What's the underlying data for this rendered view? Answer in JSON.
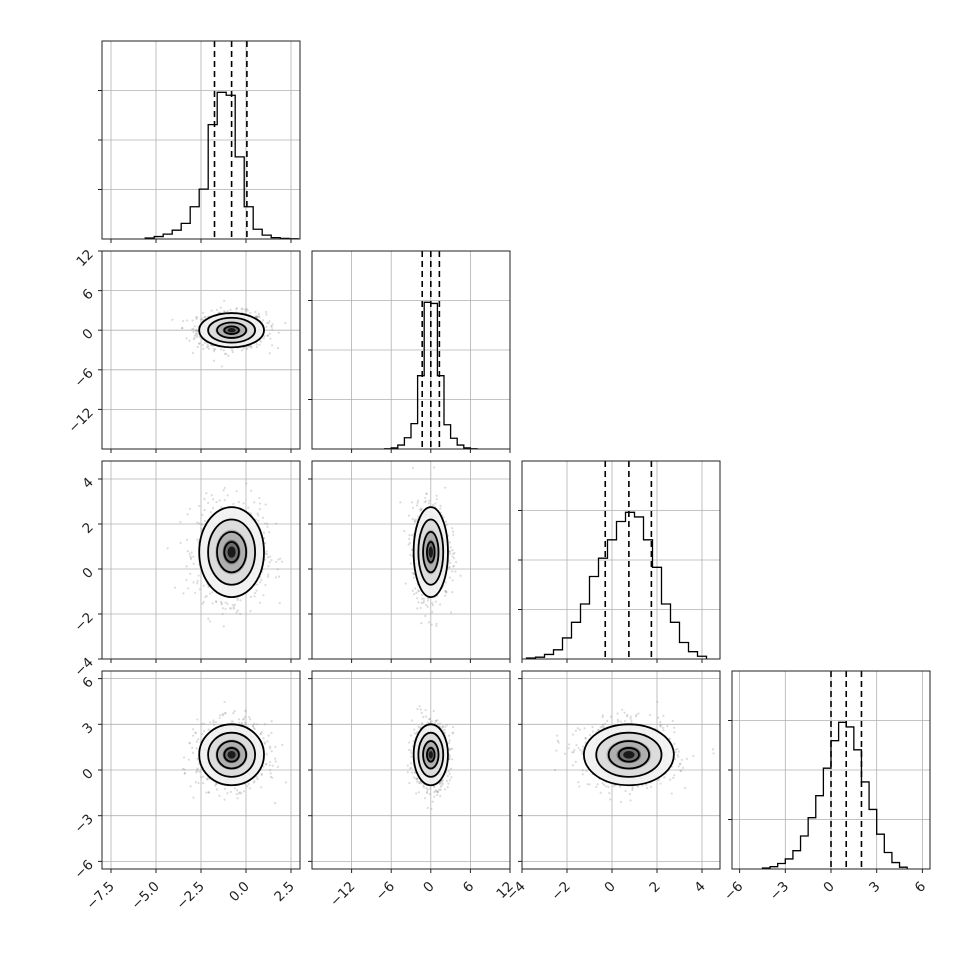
{
  "chart_data": {
    "type": "corner",
    "n_params": 4,
    "parameters": [
      {
        "ticks": [
          -7.5,
          -5.0,
          -2.5,
          0.0,
          2.5
        ],
        "tick_labels": [
          "−7.5",
          "−5.0",
          "−2.5",
          "0.0",
          "2.5"
        ],
        "range": [
          -8.0,
          3.0
        ],
        "mean": -0.8,
        "std": 0.9,
        "quantiles": [
          -1.75,
          -0.8,
          0.05
        ]
      },
      {
        "ticks": [
          -12,
          -6,
          0,
          6,
          12
        ],
        "tick_labels": [
          "−12",
          "−6",
          "0",
          "6",
          "12"
        ],
        "range": [
          -18.0,
          12.0
        ],
        "mean": 0.0,
        "std": 1.3,
        "quantiles": [
          -1.3,
          0.0,
          1.3
        ]
      },
      {
        "ticks": [
          -4,
          -2,
          0,
          2,
          4
        ],
        "tick_labels": [
          "−4",
          "−2",
          "0",
          "2",
          "4"
        ],
        "range": [
          -4.0,
          4.8
        ],
        "mean": 0.75,
        "std": 1.0,
        "quantiles": [
          -0.3,
          0.75,
          1.75
        ]
      },
      {
        "ticks": [
          -6,
          -3,
          0,
          3,
          6
        ],
        "tick_labels": [
          "−6",
          "−3",
          "0",
          "3",
          "6"
        ],
        "range": [
          -6.5,
          6.5
        ],
        "mean": 1.0,
        "std": 1.0,
        "quantiles": [
          0.0,
          1.0,
          2.0
        ]
      }
    ],
    "histograms": [
      {
        "param": 0,
        "edges": [
          -5.6,
          -5.1,
          -4.6,
          -4.1,
          -3.6,
          -3.1,
          -2.6,
          -2.1,
          -1.6,
          -1.1,
          -0.6,
          -0.1,
          0.4,
          0.9,
          1.4,
          1.9,
          2.4,
          2.9
        ],
        "counts": [
          10,
          25,
          50,
          90,
          160,
          330,
          510,
          1170,
          1500,
          1470,
          840,
          330,
          100,
          40,
          14,
          6,
          2
        ]
      },
      {
        "param": 1,
        "edges": [
          -7.0,
          -6.0,
          -5.0,
          -4.0,
          -3.0,
          -2.0,
          -1.0,
          0.0,
          1.0,
          2.0,
          3.0,
          4.0,
          5.0,
          6.0,
          7.0
        ],
        "counts": [
          5,
          20,
          70,
          200,
          450,
          1300,
          2600,
          2580,
          1300,
          430,
          190,
          70,
          20,
          5
        ]
      },
      {
        "param": 2,
        "edges": [
          -3.8,
          -3.4,
          -3.0,
          -2.6,
          -2.2,
          -1.8,
          -1.4,
          -1.0,
          -0.6,
          -0.2,
          0.2,
          0.6,
          1.0,
          1.4,
          1.8,
          2.2,
          2.6,
          3.0,
          3.4,
          3.8,
          4.2
        ],
        "counts": [
          10,
          20,
          50,
          100,
          230,
          400,
          600,
          900,
          1100,
          1300,
          1500,
          1600,
          1550,
          1300,
          1000,
          600,
          400,
          180,
          80,
          30
        ]
      },
      {
        "param": 3,
        "edges": [
          -4.5,
          -4.0,
          -3.5,
          -3.0,
          -2.5,
          -2.0,
          -1.5,
          -1.0,
          -0.5,
          0.0,
          0.5,
          1.0,
          1.5,
          2.0,
          2.5,
          3.0,
          3.5,
          4.0,
          4.5,
          5.0
        ],
        "counts": [
          10,
          25,
          60,
          110,
          200,
          360,
          560,
          800,
          1100,
          1400,
          1600,
          1550,
          1300,
          950,
          650,
          380,
          180,
          70,
          20
        ]
      }
    ],
    "quantile_style": "dashed",
    "grid": true,
    "ylim_hist_top": 1.35
  }
}
